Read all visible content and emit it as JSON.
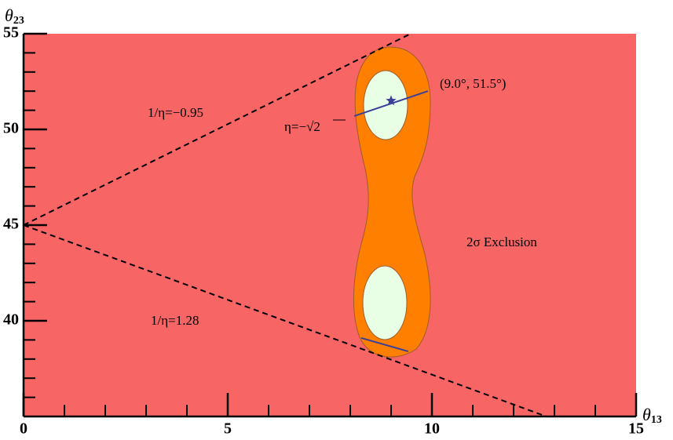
{
  "chart_data": {
    "type": "line",
    "xlabel": {
      "symbol": "θ",
      "subscript": "13"
    },
    "ylabel": {
      "symbol": "θ",
      "subscript": "23"
    },
    "xlim": [
      0,
      15
    ],
    "ylim": [
      35,
      55
    ],
    "xticks": [
      0,
      5,
      10,
      15
    ],
    "yticks": [
      40,
      45,
      50,
      55
    ],
    "xminorticks": [
      1,
      2,
      3,
      4,
      6,
      7,
      8,
      9,
      11,
      12,
      13,
      14
    ],
    "yminorticks": [
      36,
      37,
      38,
      39,
      41,
      42,
      43,
      44,
      46,
      47,
      48,
      49,
      51,
      52,
      53,
      54
    ],
    "region_colors": {
      "exclusion": "#f86565",
      "allowed_2sigma": "#ff8000",
      "allowed_1sigma": "#e8ffe6",
      "region_edge": "#a05a2a"
    },
    "series": [
      {
        "color": "#000000",
        "dashed": true,
        "x": [
          0,
          9.48
        ],
        "values": [
          45,
          55
        ]
      },
      {
        "color": "#000000",
        "dashed": true,
        "x": [
          0,
          12.8
        ],
        "values": [
          45,
          35
        ]
      },
      {
        "color": "#3a3f99",
        "dashed": false,
        "x": [
          8.1,
          9.9
        ],
        "values": [
          50.7,
          52.0
        ]
      },
      {
        "color": "#3a3f99",
        "dashed": false,
        "x": [
          8.27,
          9.42
        ],
        "values": [
          39.1,
          38.4
        ]
      }
    ],
    "point": {
      "x": 9.0,
      "y": 51.5,
      "color": "#3a3f99",
      "marker": "star"
    },
    "annotations": [
      "1/η=−0.95",
      "1/η=1.28",
      "η=−√2",
      "(9.0°, 51.5°)",
      "2σ Exclusion"
    ]
  }
}
